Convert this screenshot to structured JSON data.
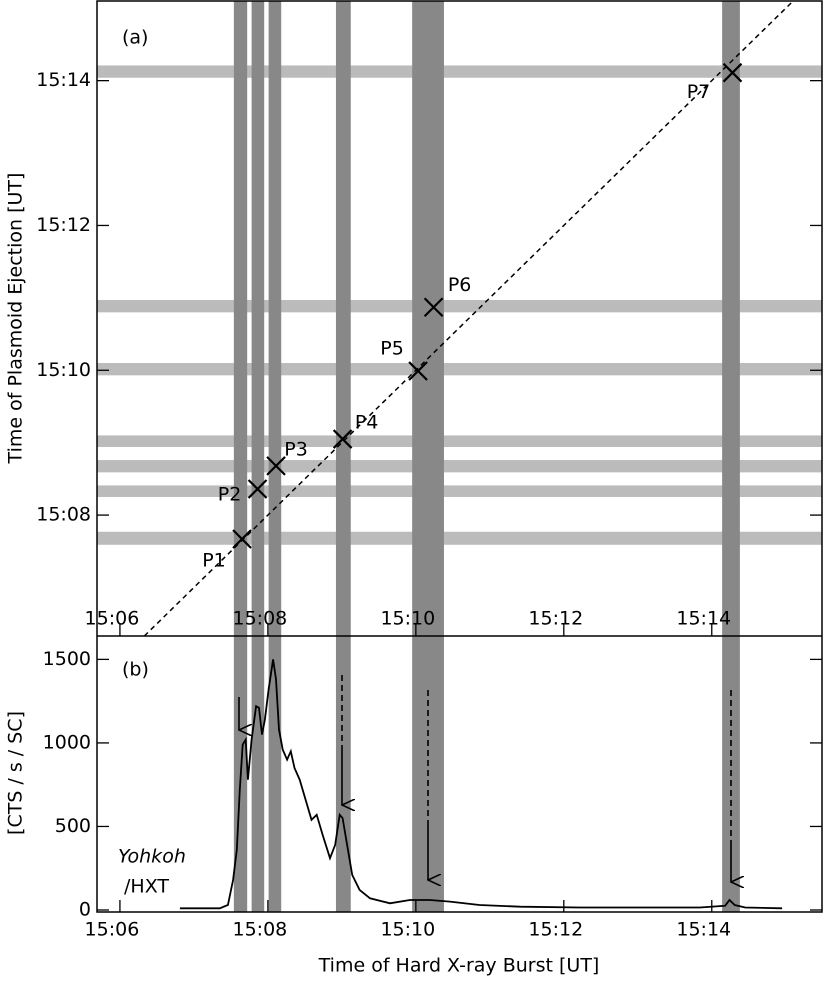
{
  "chart_data": [
    {
      "type": "scatter",
      "annotation": "(a)",
      "ylabel": "Time of Plasmoid Ejection [UT]",
      "xlim": [
        5.69,
        15.49
      ],
      "ylim": [
        6.33,
        15.1
      ],
      "xticks": [
        {
          "value": 6,
          "label": "15:06"
        },
        {
          "value": 8,
          "label": "15:08"
        },
        {
          "value": 10,
          "label": "15:10"
        },
        {
          "value": 12,
          "label": "15:12"
        },
        {
          "value": 14,
          "label": "15:14"
        }
      ],
      "yticks": [
        {
          "value": 8,
          "label": "15:08"
        },
        {
          "value": 10,
          "label": "15:10"
        },
        {
          "value": 12,
          "label": "15:12"
        },
        {
          "value": 14,
          "label": "15:14"
        }
      ],
      "labels": [
        "P1",
        "P2",
        "P3",
        "P4",
        "P5",
        "P6",
        "P7"
      ],
      "x": [
        7.65,
        7.86,
        8.11,
        9.01,
        10.03,
        10.24,
        14.28
      ],
      "y": [
        7.67,
        8.36,
        8.68,
        9.05,
        9.99,
        10.87,
        14.11
      ],
      "color": "#000000",
      "hxr_bands": [
        [
          7.54,
          7.72
        ],
        [
          7.78,
          7.95
        ],
        [
          8.01,
          8.18
        ],
        [
          8.92,
          9.12
        ],
        [
          9.95,
          10.38
        ],
        [
          14.14,
          14.38
        ]
      ],
      "hxr_band_color": "#888888",
      "ejection_bands": [
        [
          14.04,
          14.21
        ],
        [
          10.8,
          10.97
        ],
        [
          9.93,
          10.1
        ],
        [
          8.94,
          9.1
        ],
        [
          8.59,
          8.76
        ],
        [
          8.25,
          8.41
        ],
        [
          7.59,
          7.77
        ]
      ],
      "ejection_band_color": "#bbbbbb"
    },
    {
      "type": "line",
      "annotation": "(b)",
      "source": [
        "Yohkoh",
        "/HXT"
      ],
      "xlabel": "Time of Hard X-ray Burst [UT]",
      "ylabel": "[CTS / s / SC]",
      "xlim": [
        5.69,
        15.49
      ],
      "ylim": [
        -12,
        1640
      ],
      "xticks": [
        {
          "value": 6,
          "label": "15:06"
        },
        {
          "value": 8,
          "label": "15:08"
        },
        {
          "value": 10,
          "label": "15:10"
        },
        {
          "value": 12,
          "label": "15:12"
        },
        {
          "value": 14,
          "label": "15:14"
        }
      ],
      "yticks": [
        0,
        500,
        1000,
        1500
      ],
      "x": [
        6.81,
        7.35,
        7.46,
        7.53,
        7.58,
        7.62,
        7.66,
        7.7,
        7.73,
        7.78,
        7.84,
        7.88,
        7.92,
        7.96,
        8.01,
        8.07,
        8.11,
        8.15,
        8.2,
        8.26,
        8.31,
        8.36,
        8.43,
        8.51,
        8.59,
        8.66,
        8.74,
        8.84,
        8.91,
        8.97,
        9.01,
        9.07,
        9.14,
        9.24,
        9.38,
        9.65,
        9.92,
        10.19,
        10.46,
        10.86,
        11.41,
        12.22,
        13.03,
        13.84,
        14.18,
        14.24,
        14.31,
        14.45,
        14.95
      ],
      "values": [
        10,
        10,
        30,
        180,
        360,
        720,
        990,
        1020,
        780,
        1020,
        1220,
        1210,
        1050,
        1140,
        1320,
        1500,
        1380,
        1080,
        960,
        900,
        950,
        850,
        780,
        660,
        540,
        570,
        450,
        310,
        390,
        570,
        550,
        390,
        210,
        120,
        70,
        40,
        60,
        60,
        50,
        30,
        20,
        15,
        15,
        15,
        25,
        60,
        30,
        15,
        10
      ],
      "color": "#000000"
    }
  ]
}
